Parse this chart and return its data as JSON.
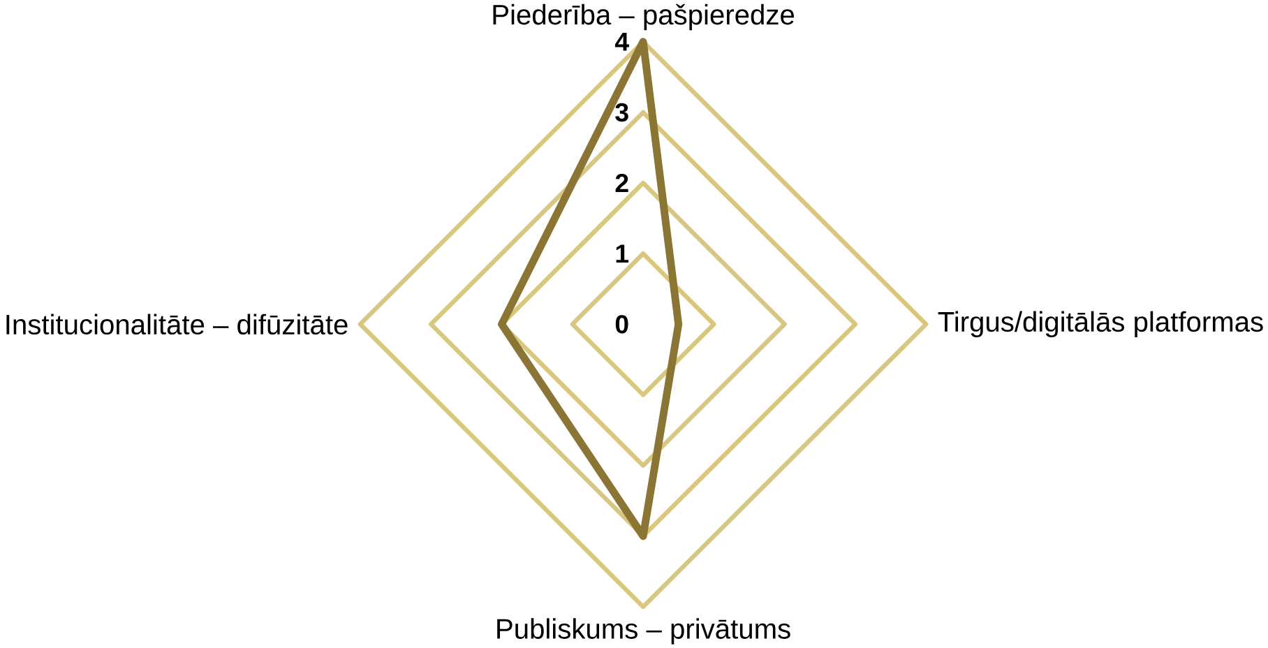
{
  "chart_data": {
    "type": "radar",
    "categories": [
      "Piederība – pašpieredze",
      "Tirgus/digitālās platformas",
      "Publiskums – privātums",
      "Institucionalitāte – difūzitāte"
    ],
    "series": [
      {
        "color": "#8b7535",
        "values": [
          4,
          0.5,
          3,
          2
        ]
      }
    ],
    "ylim": [
      0,
      4
    ],
    "yticks": [
      0,
      1,
      2,
      3,
      4
    ]
  }
}
